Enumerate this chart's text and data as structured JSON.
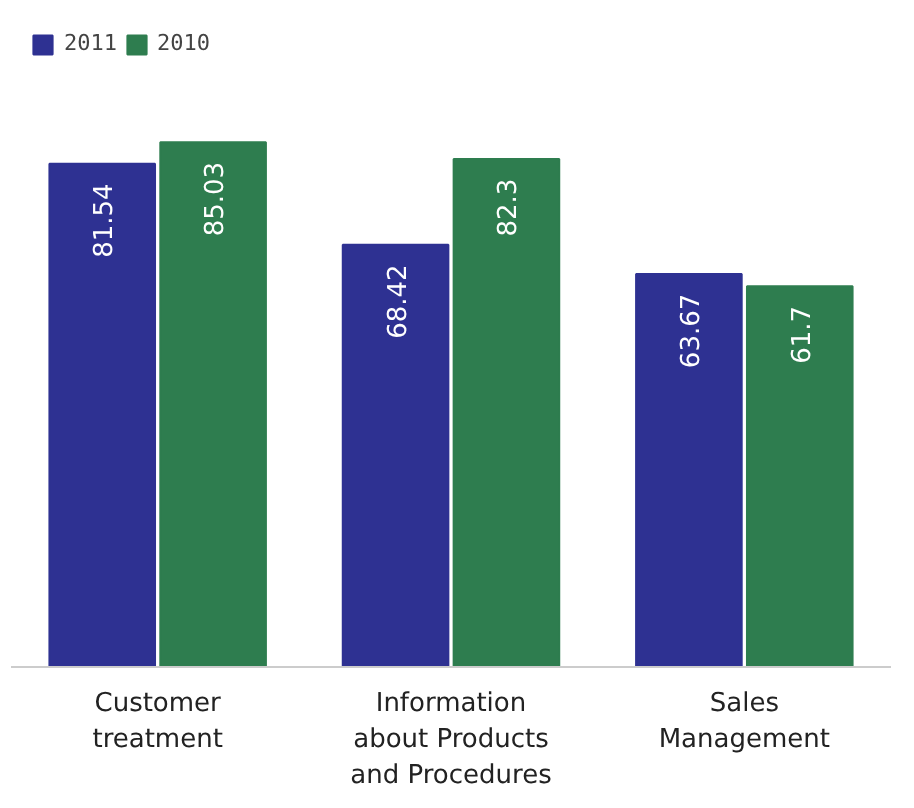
{
  "chart_data": {
    "type": "bar",
    "categories": [
      "Customer treatment",
      "Information about Products and Procedures",
      "Sales Management"
    ],
    "series": [
      {
        "name": "2011",
        "color": "#2e3192",
        "values": [
          81.54,
          68.42,
          63.67
        ]
      },
      {
        "name": "2010",
        "color": "#2e7d4f",
        "values": [
          85.03,
          82.3,
          61.7
        ]
      }
    ],
    "data_labels": true,
    "legend": "top left",
    "grid": false
  }
}
